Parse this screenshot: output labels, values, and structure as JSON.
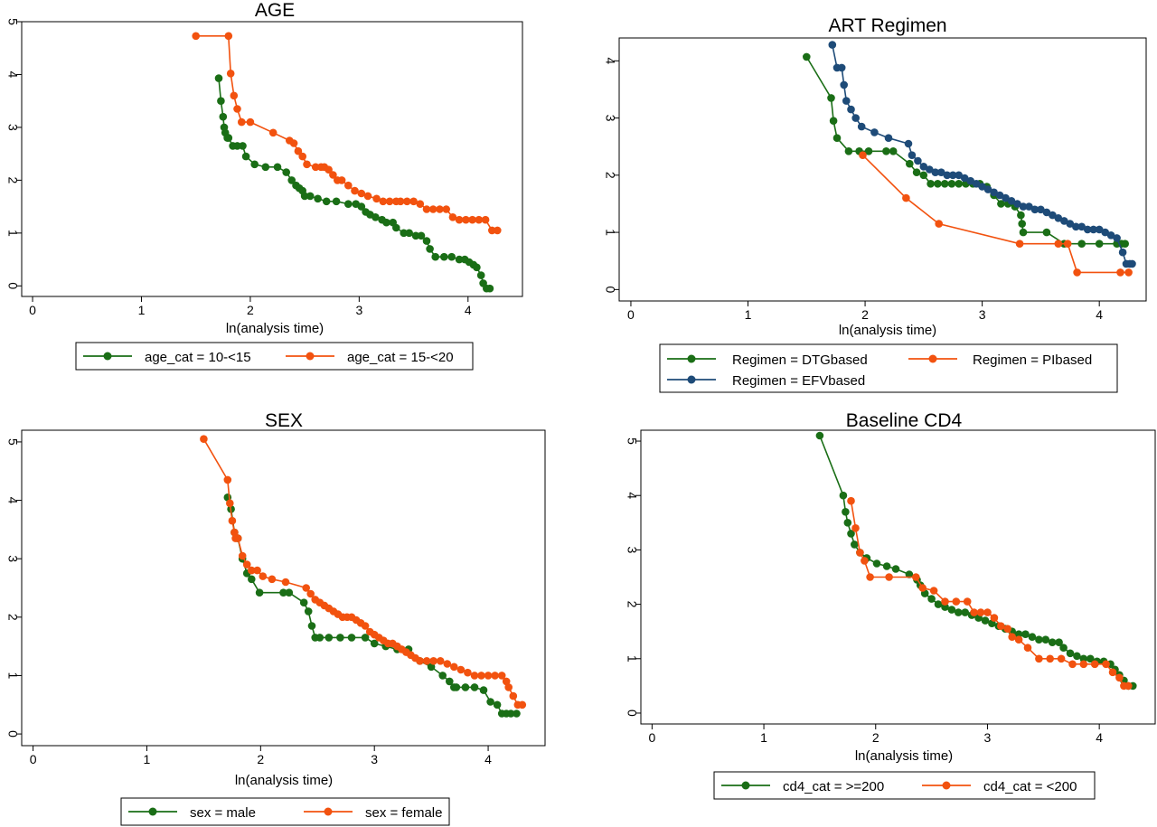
{
  "chart_data": [
    {
      "type": "line",
      "title": "AGE",
      "xlabel": "ln(analysis time)",
      "ylabel": "",
      "xlim": [
        -0.1,
        4.5
      ],
      "ylim": [
        -0.2,
        5.0
      ],
      "xticks": [
        "0",
        "1",
        "2",
        "3",
        "4"
      ],
      "yticks": [
        "0",
        "1",
        "2",
        "3",
        "4",
        "5"
      ],
      "legend_position": "bottom",
      "series": [
        {
          "name": "age_cat = 10-<15",
          "color": "#1a6e16",
          "x": [
            1.71,
            1.73,
            1.75,
            1.76,
            1.77,
            1.79,
            1.8,
            1.84,
            1.88,
            1.93,
            1.96,
            2.04,
            2.14,
            2.25,
            2.33,
            2.38,
            2.42,
            2.45,
            2.48,
            2.5,
            2.55,
            2.62,
            2.7,
            2.79,
            2.9,
            2.97,
            3.02,
            3.06,
            3.1,
            3.15,
            3.21,
            3.25,
            3.31,
            3.34,
            3.41,
            3.46,
            3.52,
            3.57,
            3.62,
            3.65,
            3.7,
            3.78,
            3.85,
            3.92,
            3.97,
            4.01,
            4.05,
            4.08,
            4.12,
            4.14,
            4.17,
            4.2
          ],
          "y": [
            3.93,
            3.5,
            3.2,
            3.0,
            2.9,
            2.8,
            2.8,
            2.65,
            2.65,
            2.65,
            2.45,
            2.3,
            2.25,
            2.25,
            2.15,
            2.0,
            1.9,
            1.85,
            1.8,
            1.7,
            1.7,
            1.65,
            1.6,
            1.6,
            1.55,
            1.55,
            1.5,
            1.4,
            1.35,
            1.3,
            1.25,
            1.2,
            1.2,
            1.1,
            1.0,
            1.0,
            0.95,
            0.95,
            0.85,
            0.7,
            0.55,
            0.55,
            0.55,
            0.5,
            0.5,
            0.45,
            0.4,
            0.35,
            0.2,
            0.05,
            -0.05,
            -0.05
          ]
        },
        {
          "name": "age_cat = 15-<20",
          "color": "#f2520f",
          "x": [
            1.5,
            1.8,
            1.82,
            1.85,
            1.88,
            1.92,
            2.0,
            2.21,
            2.36,
            2.4,
            2.44,
            2.48,
            2.52,
            2.6,
            2.65,
            2.68,
            2.72,
            2.76,
            2.8,
            2.84,
            2.9,
            2.96,
            3.02,
            3.08,
            3.16,
            3.22,
            3.28,
            3.34,
            3.38,
            3.44,
            3.5,
            3.56,
            3.62,
            3.68,
            3.74,
            3.8,
            3.86,
            3.92,
            3.98,
            4.04,
            4.1,
            4.16,
            4.22,
            4.27
          ],
          "y": [
            4.73,
            4.73,
            4.02,
            3.6,
            3.35,
            3.1,
            3.1,
            2.9,
            2.75,
            2.7,
            2.55,
            2.45,
            2.3,
            2.25,
            2.25,
            2.25,
            2.2,
            2.1,
            2.0,
            2.0,
            1.9,
            1.8,
            1.75,
            1.7,
            1.65,
            1.6,
            1.6,
            1.6,
            1.6,
            1.6,
            1.6,
            1.55,
            1.45,
            1.45,
            1.45,
            1.45,
            1.3,
            1.25,
            1.25,
            1.25,
            1.25,
            1.25,
            1.05,
            1.05
          ]
        }
      ]
    },
    {
      "type": "line",
      "title": "ART Regimen",
      "xlabel": "ln(analysis time)",
      "ylabel": "",
      "xlim": [
        -0.1,
        4.4
      ],
      "ylim": [
        -0.2,
        4.4
      ],
      "xticks": [
        "0",
        "1",
        "2",
        "3",
        "4"
      ],
      "yticks": [
        "0",
        "1",
        "2",
        "3",
        "4"
      ],
      "legend_position": "bottom",
      "series": [
        {
          "name": "Regimen = DTGbased",
          "color": "#1a6e16",
          "x": [
            1.5,
            1.71,
            1.73,
            1.76,
            1.86,
            1.95,
            2.03,
            2.18,
            2.24,
            2.38,
            2.44,
            2.5,
            2.56,
            2.62,
            2.68,
            2.74,
            2.8,
            2.86,
            2.92,
            2.98,
            3.04,
            3.1,
            3.16,
            3.22,
            3.28,
            3.33,
            3.34,
            3.35,
            3.55,
            3.7,
            3.85,
            4.0,
            4.15,
            4.19,
            4.22
          ],
          "y": [
            4.07,
            3.35,
            2.95,
            2.65,
            2.42,
            2.42,
            2.42,
            2.42,
            2.42,
            2.2,
            2.05,
            2.0,
            1.85,
            1.85,
            1.85,
            1.85,
            1.85,
            1.85,
            1.85,
            1.85,
            1.8,
            1.65,
            1.5,
            1.5,
            1.45,
            1.3,
            1.15,
            1.0,
            1.0,
            0.8,
            0.8,
            0.8,
            0.8,
            0.8,
            0.8
          ]
        },
        {
          "name": "Regimen = PIbased",
          "color": "#f2520f",
          "x": [
            1.98,
            2.35,
            2.63,
            3.32,
            3.65,
            3.73,
            3.81,
            4.18,
            4.25
          ],
          "y": [
            2.35,
            1.6,
            1.15,
            0.8,
            0.8,
            0.8,
            0.3,
            0.3,
            0.3
          ]
        },
        {
          "name": "Regimen = EFVbased",
          "color": "#1e4b78",
          "x": [
            1.72,
            1.76,
            1.8,
            1.82,
            1.84,
            1.88,
            1.92,
            1.97,
            2.08,
            2.2,
            2.37,
            2.4,
            2.45,
            2.5,
            2.55,
            2.6,
            2.65,
            2.7,
            2.75,
            2.8,
            2.85,
            2.9,
            2.95,
            3.0,
            3.05,
            3.1,
            3.15,
            3.2,
            3.25,
            3.3,
            3.35,
            3.4,
            3.45,
            3.5,
            3.55,
            3.6,
            3.65,
            3.7,
            3.75,
            3.8,
            3.85,
            3.9,
            3.95,
            4.0,
            4.05,
            4.1,
            4.15,
            4.2,
            4.23,
            4.26,
            4.28
          ],
          "y": [
            4.28,
            3.88,
            3.88,
            3.58,
            3.3,
            3.15,
            3.0,
            2.85,
            2.75,
            2.65,
            2.55,
            2.35,
            2.25,
            2.15,
            2.1,
            2.05,
            2.05,
            2.0,
            2.0,
            2.0,
            1.95,
            1.9,
            1.85,
            1.8,
            1.75,
            1.7,
            1.65,
            1.6,
            1.55,
            1.5,
            1.45,
            1.45,
            1.4,
            1.4,
            1.35,
            1.3,
            1.25,
            1.2,
            1.15,
            1.1,
            1.1,
            1.05,
            1.05,
            1.05,
            1.0,
            0.95,
            0.9,
            0.65,
            0.45,
            0.45,
            0.45
          ]
        }
      ]
    },
    {
      "type": "line",
      "title": "SEX",
      "xlabel": "ln(analysis time)",
      "ylabel": "",
      "xlim": [
        -0.1,
        4.5
      ],
      "ylim": [
        -0.2,
        5.2
      ],
      "xticks": [
        "0",
        "1",
        "2",
        "3",
        "4"
      ],
      "yticks": [
        "0",
        "1",
        "2",
        "3",
        "4",
        "5"
      ],
      "legend_position": "bottom",
      "series": [
        {
          "name": "sex = male",
          "color": "#1a6e16",
          "x": [
            1.71,
            1.74,
            1.77,
            1.8,
            1.84,
            1.88,
            1.92,
            1.99,
            2.2,
            2.25,
            2.38,
            2.42,
            2.45,
            2.48,
            2.52,
            2.6,
            2.7,
            2.8,
            2.92,
            3.0,
            3.1,
            3.2,
            3.3,
            3.4,
            3.5,
            3.6,
            3.66,
            3.7,
            3.72,
            3.8,
            3.88,
            3.96,
            4.02,
            4.08,
            4.12,
            4.16,
            4.2,
            4.25
          ],
          "y": [
            4.05,
            3.85,
            3.45,
            3.35,
            3.0,
            2.75,
            2.65,
            2.42,
            2.42,
            2.42,
            2.25,
            2.1,
            1.85,
            1.65,
            1.65,
            1.65,
            1.65,
            1.65,
            1.65,
            1.55,
            1.5,
            1.45,
            1.45,
            1.25,
            1.15,
            1.0,
            0.9,
            0.8,
            0.8,
            0.8,
            0.8,
            0.75,
            0.55,
            0.5,
            0.35,
            0.35,
            0.35,
            0.35
          ]
        },
        {
          "name": "sex = female",
          "color": "#f2520f",
          "x": [
            1.5,
            1.71,
            1.73,
            1.75,
            1.77,
            1.78,
            1.8,
            1.84,
            1.88,
            1.92,
            1.97,
            2.02,
            2.1,
            2.22,
            2.4,
            2.44,
            2.48,
            2.52,
            2.56,
            2.6,
            2.64,
            2.68,
            2.72,
            2.76,
            2.8,
            2.84,
            2.88,
            2.92,
            2.96,
            3.0,
            3.04,
            3.08,
            3.12,
            3.16,
            3.2,
            3.24,
            3.28,
            3.32,
            3.36,
            3.4,
            3.46,
            3.52,
            3.58,
            3.64,
            3.7,
            3.76,
            3.82,
            3.88,
            3.94,
            4.0,
            4.06,
            4.12,
            4.16,
            4.18,
            4.22,
            4.26,
            4.3
          ],
          "y": [
            5.05,
            4.35,
            3.95,
            3.65,
            3.45,
            3.35,
            3.35,
            3.05,
            2.9,
            2.8,
            2.8,
            2.7,
            2.65,
            2.6,
            2.5,
            2.4,
            2.3,
            2.25,
            2.2,
            2.15,
            2.1,
            2.05,
            2.0,
            2.0,
            2.0,
            1.95,
            1.9,
            1.85,
            1.75,
            1.7,
            1.65,
            1.6,
            1.55,
            1.55,
            1.5,
            1.45,
            1.4,
            1.35,
            1.3,
            1.25,
            1.25,
            1.25,
            1.25,
            1.2,
            1.15,
            1.1,
            1.05,
            1.0,
            1.0,
            1.0,
            1.0,
            1.0,
            0.9,
            0.8,
            0.65,
            0.5,
            0.5
          ]
        }
      ]
    },
    {
      "type": "line",
      "title": "Baseline CD4",
      "xlabel": "ln(analysis time)",
      "ylabel": "",
      "xlim": [
        -0.1,
        4.5
      ],
      "ylim": [
        -0.2,
        5.2
      ],
      "xticks": [
        "0",
        "1",
        "2",
        "3",
        "4"
      ],
      "yticks": [
        "0",
        "1",
        "2",
        "3",
        "4",
        "5"
      ],
      "legend_position": "bottom",
      "series": [
        {
          "name": "cd4_cat = >=200",
          "color": "#1a6e16",
          "x": [
            1.5,
            1.71,
            1.73,
            1.75,
            1.78,
            1.81,
            1.86,
            1.92,
            2.01,
            2.1,
            2.18,
            2.3,
            2.37,
            2.4,
            2.44,
            2.5,
            2.56,
            2.62,
            2.68,
            2.74,
            2.8,
            2.86,
            2.92,
            2.98,
            3.04,
            3.1,
            3.16,
            3.22,
            3.28,
            3.34,
            3.4,
            3.46,
            3.52,
            3.58,
            3.64,
            3.68,
            3.74,
            3.8,
            3.86,
            3.92,
            3.98,
            4.04,
            4.1,
            4.14,
            4.18,
            4.22,
            4.26,
            4.3
          ],
          "y": [
            5.1,
            4.0,
            3.7,
            3.5,
            3.3,
            3.1,
            2.95,
            2.85,
            2.75,
            2.7,
            2.65,
            2.55,
            2.45,
            2.35,
            2.2,
            2.1,
            2.0,
            1.95,
            1.9,
            1.85,
            1.85,
            1.8,
            1.75,
            1.7,
            1.65,
            1.6,
            1.55,
            1.5,
            1.45,
            1.45,
            1.4,
            1.35,
            1.35,
            1.3,
            1.3,
            1.2,
            1.1,
            1.05,
            1.0,
            1.0,
            0.95,
            0.95,
            0.9,
            0.8,
            0.7,
            0.6,
            0.5,
            0.5
          ]
        },
        {
          "name": "cd4_cat = <200",
          "color": "#f2520f",
          "x": [
            1.78,
            1.82,
            1.86,
            1.9,
            1.95,
            2.12,
            2.36,
            2.42,
            2.52,
            2.62,
            2.72,
            2.82,
            2.88,
            2.94,
            3.0,
            3.06,
            3.12,
            3.18,
            3.22,
            3.28,
            3.36,
            3.46,
            3.56,
            3.66,
            3.76,
            3.86,
            3.96,
            4.06,
            4.12,
            4.18,
            4.22,
            4.26
          ],
          "y": [
            3.9,
            3.4,
            2.95,
            2.8,
            2.5,
            2.5,
            2.5,
            2.3,
            2.25,
            2.05,
            2.05,
            2.05,
            1.85,
            1.85,
            1.85,
            1.75,
            1.6,
            1.55,
            1.4,
            1.35,
            1.2,
            1.0,
            1.0,
            1.0,
            0.9,
            0.9,
            0.9,
            0.9,
            0.75,
            0.65,
            0.5,
            0.5
          ]
        }
      ]
    }
  ]
}
